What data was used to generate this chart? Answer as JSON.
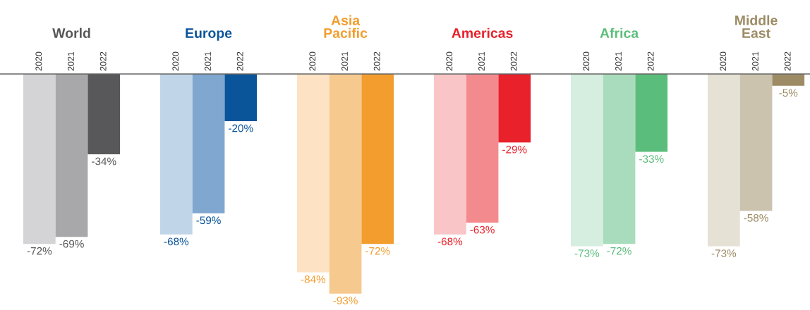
{
  "chart_data": {
    "type": "bar",
    "categories": [
      "World",
      "Europe",
      "Asia\nPacific",
      "Americas",
      "Africa",
      "Middle\nEast"
    ],
    "tick_labels": "x",
    "grid": false,
    "legend": false,
    "series": [
      {
        "name": "2020",
        "colors": [
          "#d4d4d6",
          "#c0d5e8",
          "#fde3c4",
          "#f9c5c7",
          "#d5eedf",
          "#e5e1d5"
        ],
        "values": [
          -72,
          -68,
          -84,
          -68,
          -73,
          -73
        ],
        "value_labels": [
          "-72%",
          "-68%",
          "-84%",
          "-68%",
          "-73%",
          "-73%"
        ]
      },
      {
        "name": "2021",
        "colors": [
          "#a8a8aa",
          "#7fa7cf",
          "#f6c98e",
          "#f38b8e",
          "#a9dcbc",
          "#cbc3ae"
        ],
        "values": [
          -69,
          -59,
          -93,
          -63,
          -72,
          -58
        ],
        "value_labels": [
          "-69%",
          "-59%",
          "-93%",
          "-63%",
          "-72%",
          "-58%"
        ]
      },
      {
        "name": "2022",
        "colors": [
          "#58585a",
          "#0a5499",
          "#f29d2e",
          "#e8212a",
          "#5bbd7b",
          "#9c8b64"
        ],
        "values": [
          -34,
          -20,
          -72,
          -29,
          -33,
          -5
        ],
        "value_labels": [
          "-34%",
          "-20%",
          "-72%",
          "-29%",
          "-33%",
          "-5%"
        ]
      }
    ]
  }
}
